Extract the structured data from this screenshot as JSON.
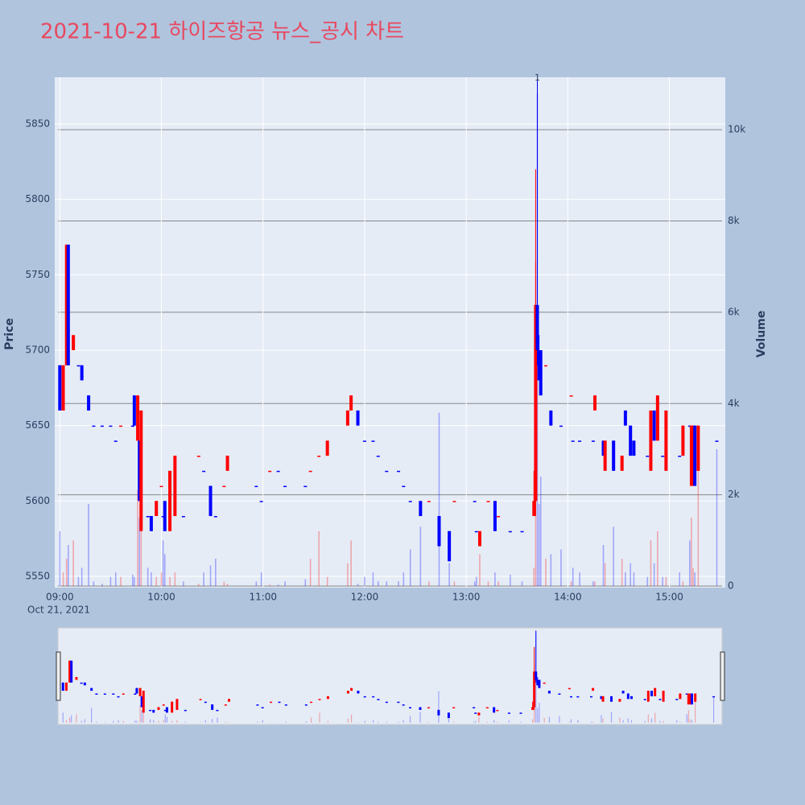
{
  "chart_data": {
    "type": "candlestick",
    "title": "2021-10-21 하이즈항공 뉴스_공시 차트",
    "y_title": "Price",
    "y2_title": "Volume",
    "x_date_label": "Oct 21, 2021",
    "increasing_color": "#ff0000",
    "decreasing_color": "#0000ff",
    "x": [
      "09:00",
      "09:02",
      "09:04",
      "09:05",
      "09:08",
      "09:11",
      "09:13",
      "09:17",
      "09:20",
      "09:25",
      "09:30",
      "09:33",
      "09:36",
      "09:43",
      "09:44",
      "09:46",
      "09:47",
      "09:48",
      "09:52",
      "09:54",
      "09:57",
      "10:00",
      "10:01",
      "10:02",
      "10:05",
      "10:08",
      "10:13",
      "10:22",
      "10:25",
      "10:29",
      "10:32",
      "10:37",
      "10:39",
      "10:56",
      "10:59",
      "11:04",
      "11:09",
      "11:13",
      "11:25",
      "11:28",
      "11:33",
      "11:38",
      "11:50",
      "11:52",
      "11:56",
      "12:00",
      "12:05",
      "12:08",
      "12:13",
      "12:20",
      "12:23",
      "12:27",
      "12:33",
      "12:38",
      "12:44",
      "12:50",
      "12:53",
      "13:05",
      "13:06",
      "13:08",
      "13:13",
      "13:17",
      "13:19",
      "13:26",
      "13:33",
      "13:40",
      "13:41",
      "13:42",
      "13:43",
      "13:44",
      "13:47",
      "13:50",
      "13:56",
      "14:02",
      "14:03",
      "14:07",
      "14:15",
      "14:16",
      "14:21",
      "14:22",
      "14:27",
      "14:32",
      "14:34",
      "14:37",
      "14:39",
      "14:47",
      "14:49",
      "14:51",
      "14:53",
      "14:56",
      "14:58",
      "15:06",
      "15:08",
      "15:12",
      "15:13",
      "15:14",
      "15:15",
      "15:17",
      "15:28"
    ],
    "open": [
      5690,
      5660,
      5690,
      5770,
      5700,
      5690,
      5690,
      5670,
      5650,
      5650,
      5650,
      5640,
      5650,
      5650,
      5670,
      5640,
      5640,
      5580,
      5590,
      5590,
      5590,
      5610,
      5590,
      5600,
      5580,
      5590,
      5590,
      5630,
      5620,
      5610,
      5590,
      5610,
      5620,
      5610,
      5600,
      5620,
      5620,
      5610,
      5610,
      5620,
      5630,
      5630,
      5650,
      5660,
      5660,
      5640,
      5640,
      5630,
      5620,
      5620,
      5610,
      5600,
      5600,
      5600,
      5590,
      5580,
      5600,
      5600,
      5580,
      5570,
      5600,
      5600,
      5590,
      5580,
      5580,
      5590,
      5600,
      5730,
      5700,
      5700,
      5690,
      5660,
      5650,
      5670,
      5640,
      5640,
      5640,
      5660,
      5640,
      5620,
      5640,
      5620,
      5660,
      5650,
      5640,
      5630,
      5620,
      5660,
      5640,
      5630,
      5620,
      5630,
      5630,
      5650,
      5610,
      5610,
      5650,
      5620,
      5640
    ],
    "high": [
      5690,
      5690,
      5770,
      5770,
      5710,
      5690,
      5690,
      5670,
      5650,
      5650,
      5650,
      5640,
      5650,
      5650,
      5670,
      5670,
      5640,
      5660,
      5590,
      5590,
      5600,
      5610,
      5590,
      5600,
      5620,
      5630,
      5590,
      5630,
      5620,
      5610,
      5590,
      5610,
      5630,
      5610,
      5600,
      5620,
      5620,
      5610,
      5610,
      5620,
      5630,
      5640,
      5660,
      5670,
      5660,
      5640,
      5640,
      5630,
      5620,
      5620,
      5610,
      5600,
      5600,
      5600,
      5590,
      5580,
      5600,
      5600,
      5580,
      5580,
      5600,
      5600,
      5590,
      5580,
      5580,
      5620,
      5820,
      5880,
      5710,
      5700,
      5690,
      5660,
      5650,
      5670,
      5640,
      5640,
      5640,
      5670,
      5640,
      5640,
      5640,
      5630,
      5660,
      5650,
      5640,
      5630,
      5660,
      5660,
      5670,
      5630,
      5660,
      5630,
      5650,
      5650,
      5650,
      5650,
      5650,
      5650,
      5640
    ],
    "low": [
      5660,
      5660,
      5690,
      5690,
      5700,
      5690,
      5680,
      5660,
      5650,
      5650,
      5650,
      5640,
      5650,
      5650,
      5650,
      5640,
      5600,
      5580,
      5590,
      5580,
      5590,
      5610,
      5590,
      5580,
      5580,
      5590,
      5590,
      5630,
      5620,
      5590,
      5590,
      5610,
      5620,
      5610,
      5600,
      5620,
      5620,
      5610,
      5610,
      5620,
      5630,
      5630,
      5650,
      5660,
      5650,
      5640,
      5640,
      5630,
      5620,
      5620,
      5610,
      5600,
      5590,
      5600,
      5570,
      5560,
      5600,
      5600,
      5580,
      5570,
      5600,
      5580,
      5590,
      5580,
      5580,
      5590,
      5590,
      5690,
      5680,
      5670,
      5690,
      5650,
      5650,
      5670,
      5640,
      5640,
      5640,
      5660,
      5630,
      5620,
      5620,
      5620,
      5650,
      5630,
      5630,
      5630,
      5620,
      5640,
      5640,
      5630,
      5620,
      5630,
      5630,
      5650,
      5610,
      5610,
      5610,
      5620,
      5640
    ],
    "close": [
      5660,
      5690,
      5770,
      5690,
      5710,
      5690,
      5680,
      5660,
      5650,
      5650,
      5650,
      5640,
      5650,
      5650,
      5650,
      5670,
      5600,
      5660,
      5590,
      5580,
      5600,
      5610,
      5590,
      5580,
      5620,
      5630,
      5590,
      5630,
      5620,
      5590,
      5590,
      5610,
      5630,
      5610,
      5600,
      5620,
      5620,
      5610,
      5610,
      5620,
      5630,
      5640,
      5660,
      5670,
      5650,
      5640,
      5640,
      5630,
      5620,
      5620,
      5610,
      5600,
      5590,
      5600,
      5570,
      5560,
      5600,
      5600,
      5580,
      5580,
      5600,
      5580,
      5590,
      5580,
      5580,
      5600,
      5730,
      5700,
      5680,
      5670,
      5690,
      5650,
      5650,
      5670,
      5640,
      5640,
      5640,
      5670,
      5630,
      5640,
      5620,
      5630,
      5650,
      5630,
      5630,
      5630,
      5660,
      5640,
      5670,
      5630,
      5660,
      5630,
      5650,
      5650,
      5650,
      5650,
      5610,
      5650,
      5640
    ],
    "volume": [
      1200,
      300,
      600,
      900,
      1000,
      200,
      400,
      1800,
      100,
      50,
      200,
      300,
      200,
      250,
      200,
      2100,
      1500,
      1200,
      400,
      300,
      200,
      300,
      1000,
      700,
      200,
      300,
      100,
      50,
      300,
      450,
      600,
      100,
      50,
      100,
      300,
      30,
      30,
      100,
      150,
      600,
      1200,
      200,
      500,
      1000,
      50,
      200,
      300,
      100,
      100,
      100,
      300,
      800,
      1300,
      100,
      3800,
      500,
      100,
      100,
      200,
      700,
      100,
      300,
      100,
      250,
      100,
      400,
      7100,
      10800,
      1800,
      2400,
      600,
      700,
      800,
      100,
      400,
      300,
      100,
      100,
      900,
      500,
      1300,
      600,
      300,
      500,
      300,
      200,
      1000,
      500,
      1200,
      200,
      200,
      300,
      100,
      1000,
      1500,
      400,
      300,
      3300,
      3000
    ],
    "xlim": [
      "08:57",
      "15:33"
    ],
    "xticks": [
      "09:00",
      "10:00",
      "11:00",
      "12:00",
      "13:00",
      "14:00",
      "15:00"
    ],
    "ylim": [
      5542.5,
      5881
    ],
    "yticks": [
      5550,
      5600,
      5650,
      5700,
      5750,
      5800,
      5850
    ],
    "y2lim": [
      -35,
      11150
    ],
    "y2ticks": [
      0,
      {
        "value": 2000,
        "label": "2k"
      },
      {
        "value": 4000,
        "label": "4k"
      },
      {
        "value": 6000,
        "label": "6k"
      },
      {
        "value": 8000,
        "label": "8k"
      },
      {
        "value": 10000,
        "label": "10k"
      }
    ],
    "annotations": [
      {
        "x": "13:42",
        "text": "1"
      }
    ],
    "grid": true,
    "rangeslider": true
  }
}
